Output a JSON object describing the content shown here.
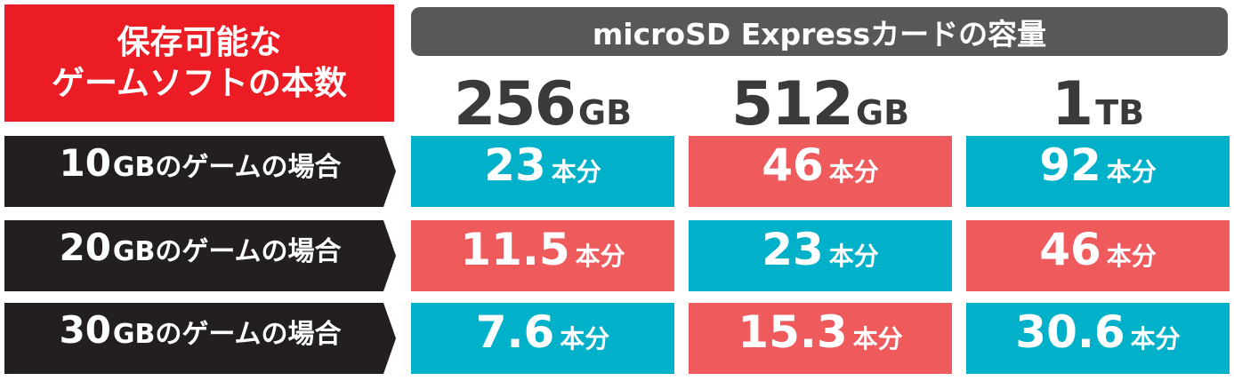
{
  "title": [
    "保存可能な",
    "ゲームソフトの本数"
  ],
  "header": "microSD Expressカードの容量",
  "columns": [
    {
      "value": "256",
      "unit": "GB"
    },
    {
      "value": "512",
      "unit": "GB"
    },
    {
      "value": "1",
      "unit": "TB"
    }
  ],
  "rows": [
    {
      "label": {
        "value": "10",
        "unit": "GBのゲームの場合"
      },
      "cells": [
        {
          "value": "23",
          "unit": "本分"
        },
        {
          "value": "46",
          "unit": "本分"
        },
        {
          "value": "92",
          "unit": "本分"
        }
      ]
    },
    {
      "label": {
        "value": "20",
        "unit": "GBのゲームの場合"
      },
      "cells": [
        {
          "value": "11.5",
          "unit": "本分"
        },
        {
          "value": "23",
          "unit": "本分"
        },
        {
          "value": "46",
          "unit": "本分"
        }
      ]
    },
    {
      "label": {
        "value": "30",
        "unit": "GBのゲームの場合"
      },
      "cells": [
        {
          "value": "7.6",
          "unit": "本分"
        },
        {
          "value": "15.3",
          "unit": "本分"
        },
        {
          "value": "30.6",
          "unit": "本分"
        }
      ]
    }
  ]
}
